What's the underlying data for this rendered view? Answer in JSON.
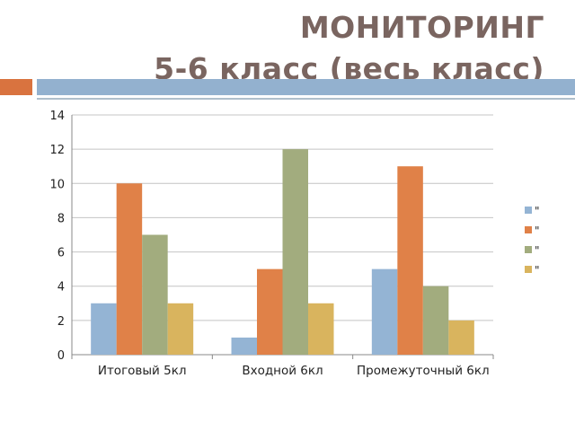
{
  "title": {
    "line1": "МОНИТОРИНГ",
    "line2": "5-6 класс (весь класс)"
  },
  "colors": {
    "title_text": "#7a6560",
    "band_orange": "#d9733f",
    "band_blue": "#93b1cf"
  },
  "chart_data": {
    "type": "bar",
    "categories": [
      "Итоговый 5кл",
      "Входной 6кл",
      "Промежуточный 6кл"
    ],
    "series": [
      {
        "name": "\"",
        "color": "#94b4d4",
        "values": [
          3,
          1,
          5
        ]
      },
      {
        "name": "\"",
        "color": "#e08148",
        "values": [
          10,
          5,
          11
        ]
      },
      {
        "name": "\"",
        "color": "#a2ac7e",
        "values": [
          7,
          12,
          4
        ]
      },
      {
        "name": "\"",
        "color": "#d9b45e",
        "values": [
          3,
          3,
          2
        ]
      }
    ],
    "ylim": [
      0,
      14
    ],
    "yticks": [
      0,
      2,
      4,
      6,
      8,
      10,
      12,
      14
    ],
    "grid": true,
    "legend": "right"
  }
}
